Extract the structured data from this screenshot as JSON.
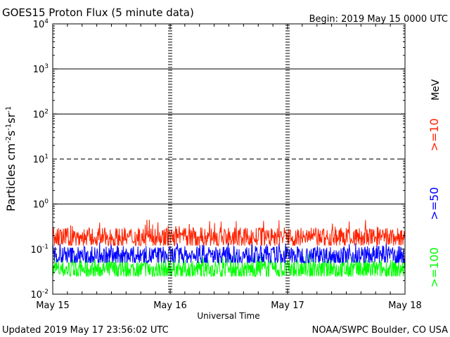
{
  "chart_data": {
    "type": "line",
    "title": "GOES15 Proton Flux (5 minute data)",
    "begin_label": "Begin: 2019 May 15 0000 UTC",
    "xlabel": "Universal Time",
    "ylabel": {
      "base": "Particles cm",
      "exp1": "-2",
      "mid1": "s",
      "exp2": "-1",
      "mid2": "sr",
      "exp3": "-1"
    },
    "y_scale": "log",
    "ylim": [
      0.01,
      10000
    ],
    "y_ticks": [
      {
        "value": 0.01,
        "base": "10",
        "exp": "-2"
      },
      {
        "value": 0.1,
        "base": "10",
        "exp": "-1"
      },
      {
        "value": 1,
        "base": "10",
        "exp": "0"
      },
      {
        "value": 10,
        "base": "10",
        "exp": "1"
      },
      {
        "value": 100,
        "base": "10",
        "exp": "2"
      },
      {
        "value": 1000,
        "base": "10",
        "exp": "3"
      },
      {
        "value": 10000,
        "base": "10",
        "exp": "4"
      }
    ],
    "x_ticks": [
      "May 15",
      "May 16",
      "May 17",
      "May 18"
    ],
    "xlim_days": [
      0,
      3
    ],
    "threshold_lines": [
      {
        "value": 10,
        "style": "dashed"
      },
      {
        "value": 1,
        "style": "solid"
      },
      {
        "value": 100,
        "style": "solid"
      },
      {
        "value": 1000,
        "style": "solid"
      }
    ],
    "unit_label": "MeV",
    "series": [
      {
        "name": ">=10",
        "color": "#ff2200",
        "typical": 0.18,
        "range": [
          0.12,
          0.45
        ]
      },
      {
        "name": ">=50",
        "color": "#0000ff",
        "typical": 0.07,
        "range": [
          0.05,
          0.15
        ]
      },
      {
        "name": ">=100",
        "color": "#00ff00",
        "typical": 0.035,
        "range": [
          0.025,
          0.08
        ]
      }
    ]
  },
  "footer": {
    "updated": "Updated 2019 May 17 23:56:02 UTC",
    "source": "NOAA/SWPC Boulder, CO USA"
  }
}
